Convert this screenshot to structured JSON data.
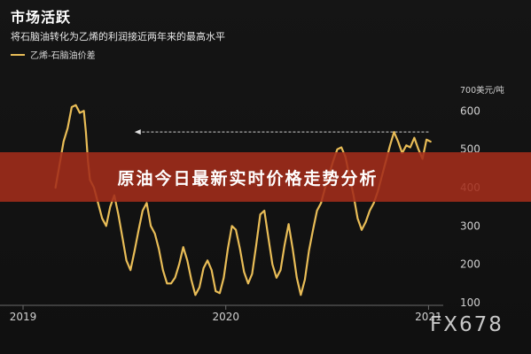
{
  "header": {
    "title": "市场活跃",
    "subtitle": "将石脑油转化为乙烯的利润接近两年来的最高水平"
  },
  "banner": {
    "text": "原油今日最新实时价格走势分析"
  },
  "watermark": "FX678",
  "colors": {
    "line": "#e9bd57",
    "banner": "#a32c1a",
    "background": "#121212",
    "text": "#d0d0d0"
  },
  "chart_data": {
    "type": "line",
    "title": "市场活跃",
    "subtitle": "将石脑油转化为乙烯的利润接近两年来的最高水平",
    "unit": "700美元/吨",
    "legend": "top-left",
    "grid": false,
    "xlim": [
      2019.0,
      2021.02
    ],
    "ylim": [
      100,
      700
    ],
    "yticks": [
      100,
      200,
      300,
      400,
      500,
      600,
      700
    ],
    "ytick_labels": [
      "100",
      "200",
      "300",
      "400",
      "500",
      "600",
      ""
    ],
    "xticks": [
      2019,
      2020,
      2021
    ],
    "xtick_labels": [
      "2019",
      "2020",
      "2021"
    ],
    "annotation": {
      "type": "dashed-arrow",
      "y": 545,
      "x_from": 2021.0,
      "x_to": 2019.55,
      "label": ""
    },
    "series": [
      {
        "name": "乙烯-石脑油价差",
        "x": [
          2019.16,
          2019.18,
          2019.2,
          2019.22,
          2019.24,
          2019.26,
          2019.28,
          2019.3,
          2019.31,
          2019.32,
          2019.33,
          2019.35,
          2019.37,
          2019.39,
          2019.41,
          2019.43,
          2019.45,
          2019.47,
          2019.49,
          2019.51,
          2019.53,
          2019.55,
          2019.57,
          2019.59,
          2019.61,
          2019.63,
          2019.65,
          2019.67,
          2019.69,
          2019.71,
          2019.73,
          2019.75,
          2019.77,
          2019.79,
          2019.81,
          2019.83,
          2019.85,
          2019.87,
          2019.89,
          2019.91,
          2019.93,
          2019.95,
          2019.97,
          2019.99,
          2020.01,
          2020.03,
          2020.05,
          2020.07,
          2020.09,
          2020.11,
          2020.13,
          2020.15,
          2020.17,
          2020.19,
          2020.21,
          2020.23,
          2020.25,
          2020.27,
          2020.29,
          2020.31,
          2020.33,
          2020.35,
          2020.37,
          2020.39,
          2020.41,
          2020.43,
          2020.45,
          2020.47,
          2020.49,
          2020.51,
          2020.53,
          2020.55,
          2020.57,
          2020.59,
          2020.61,
          2020.63,
          2020.65,
          2020.67,
          2020.69,
          2020.71,
          2020.73,
          2020.75,
          2020.77,
          2020.79,
          2020.81,
          2020.83,
          2020.85,
          2020.87,
          2020.89,
          2020.91,
          2020.93,
          2020.95,
          2020.97,
          2020.99,
          2021.01
        ],
        "values": [
          400,
          460,
          520,
          555,
          610,
          615,
          595,
          600,
          545,
          470,
          420,
          400,
          360,
          320,
          300,
          350,
          380,
          330,
          270,
          210,
          185,
          235,
          290,
          340,
          360,
          300,
          280,
          240,
          185,
          150,
          150,
          165,
          200,
          245,
          210,
          160,
          120,
          140,
          190,
          210,
          185,
          130,
          125,
          165,
          240,
          300,
          290,
          240,
          180,
          150,
          175,
          250,
          330,
          340,
          270,
          200,
          165,
          185,
          250,
          305,
          240,
          165,
          120,
          160,
          235,
          290,
          340,
          360,
          400,
          435,
          470,
          500,
          505,
          480,
          430,
          380,
          320,
          290,
          310,
          340,
          360,
          390,
          430,
          470,
          510,
          545,
          520,
          490,
          510,
          505,
          530,
          500,
          475,
          525,
          520
        ]
      }
    ]
  }
}
